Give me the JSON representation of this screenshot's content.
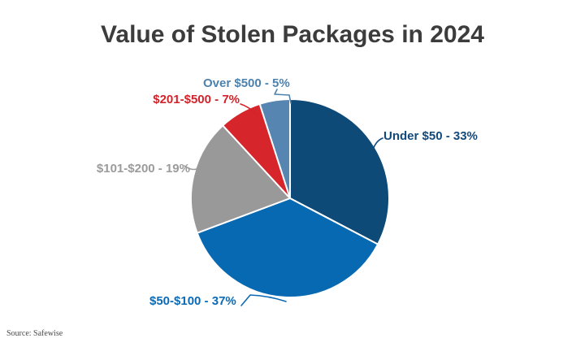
{
  "title": "Value of Stolen Packages in 2024",
  "source_note": "Source: Safewise",
  "chart_data": {
    "type": "pie",
    "title": "Value of Stolen Packages in 2024",
    "categories": [
      "Under $50",
      "$50-$100",
      "$101-$200",
      "$201-$500",
      "Over $500"
    ],
    "values": [
      33,
      37,
      19,
      7,
      5
    ],
    "unit": "%",
    "callout_labels": [
      "Under $50 - 33%",
      "$50-$100 - 37%",
      "$101-$200 - 19%",
      "$201-$500 - 7%",
      "Over $500 - 5%"
    ],
    "slice_colors": [
      "#0d4a78",
      "#0669b2",
      "#9a999a",
      "#d6262b",
      "#5585b0"
    ],
    "label_colors": [
      "#11497b",
      "#0c6ab4",
      "#9b9b9b",
      "#d2232a",
      "#4d82ae"
    ],
    "start_angle": "12 o'clock, clockwise",
    "slice_order_clockwise": [
      "Under $50",
      "$50-$100",
      "$101-$200",
      "$201-$500",
      "Over $500"
    ],
    "legend_position": "none (direct callout labels)",
    "title_color": "#3c3c3c",
    "background_color": "#ffffff"
  }
}
